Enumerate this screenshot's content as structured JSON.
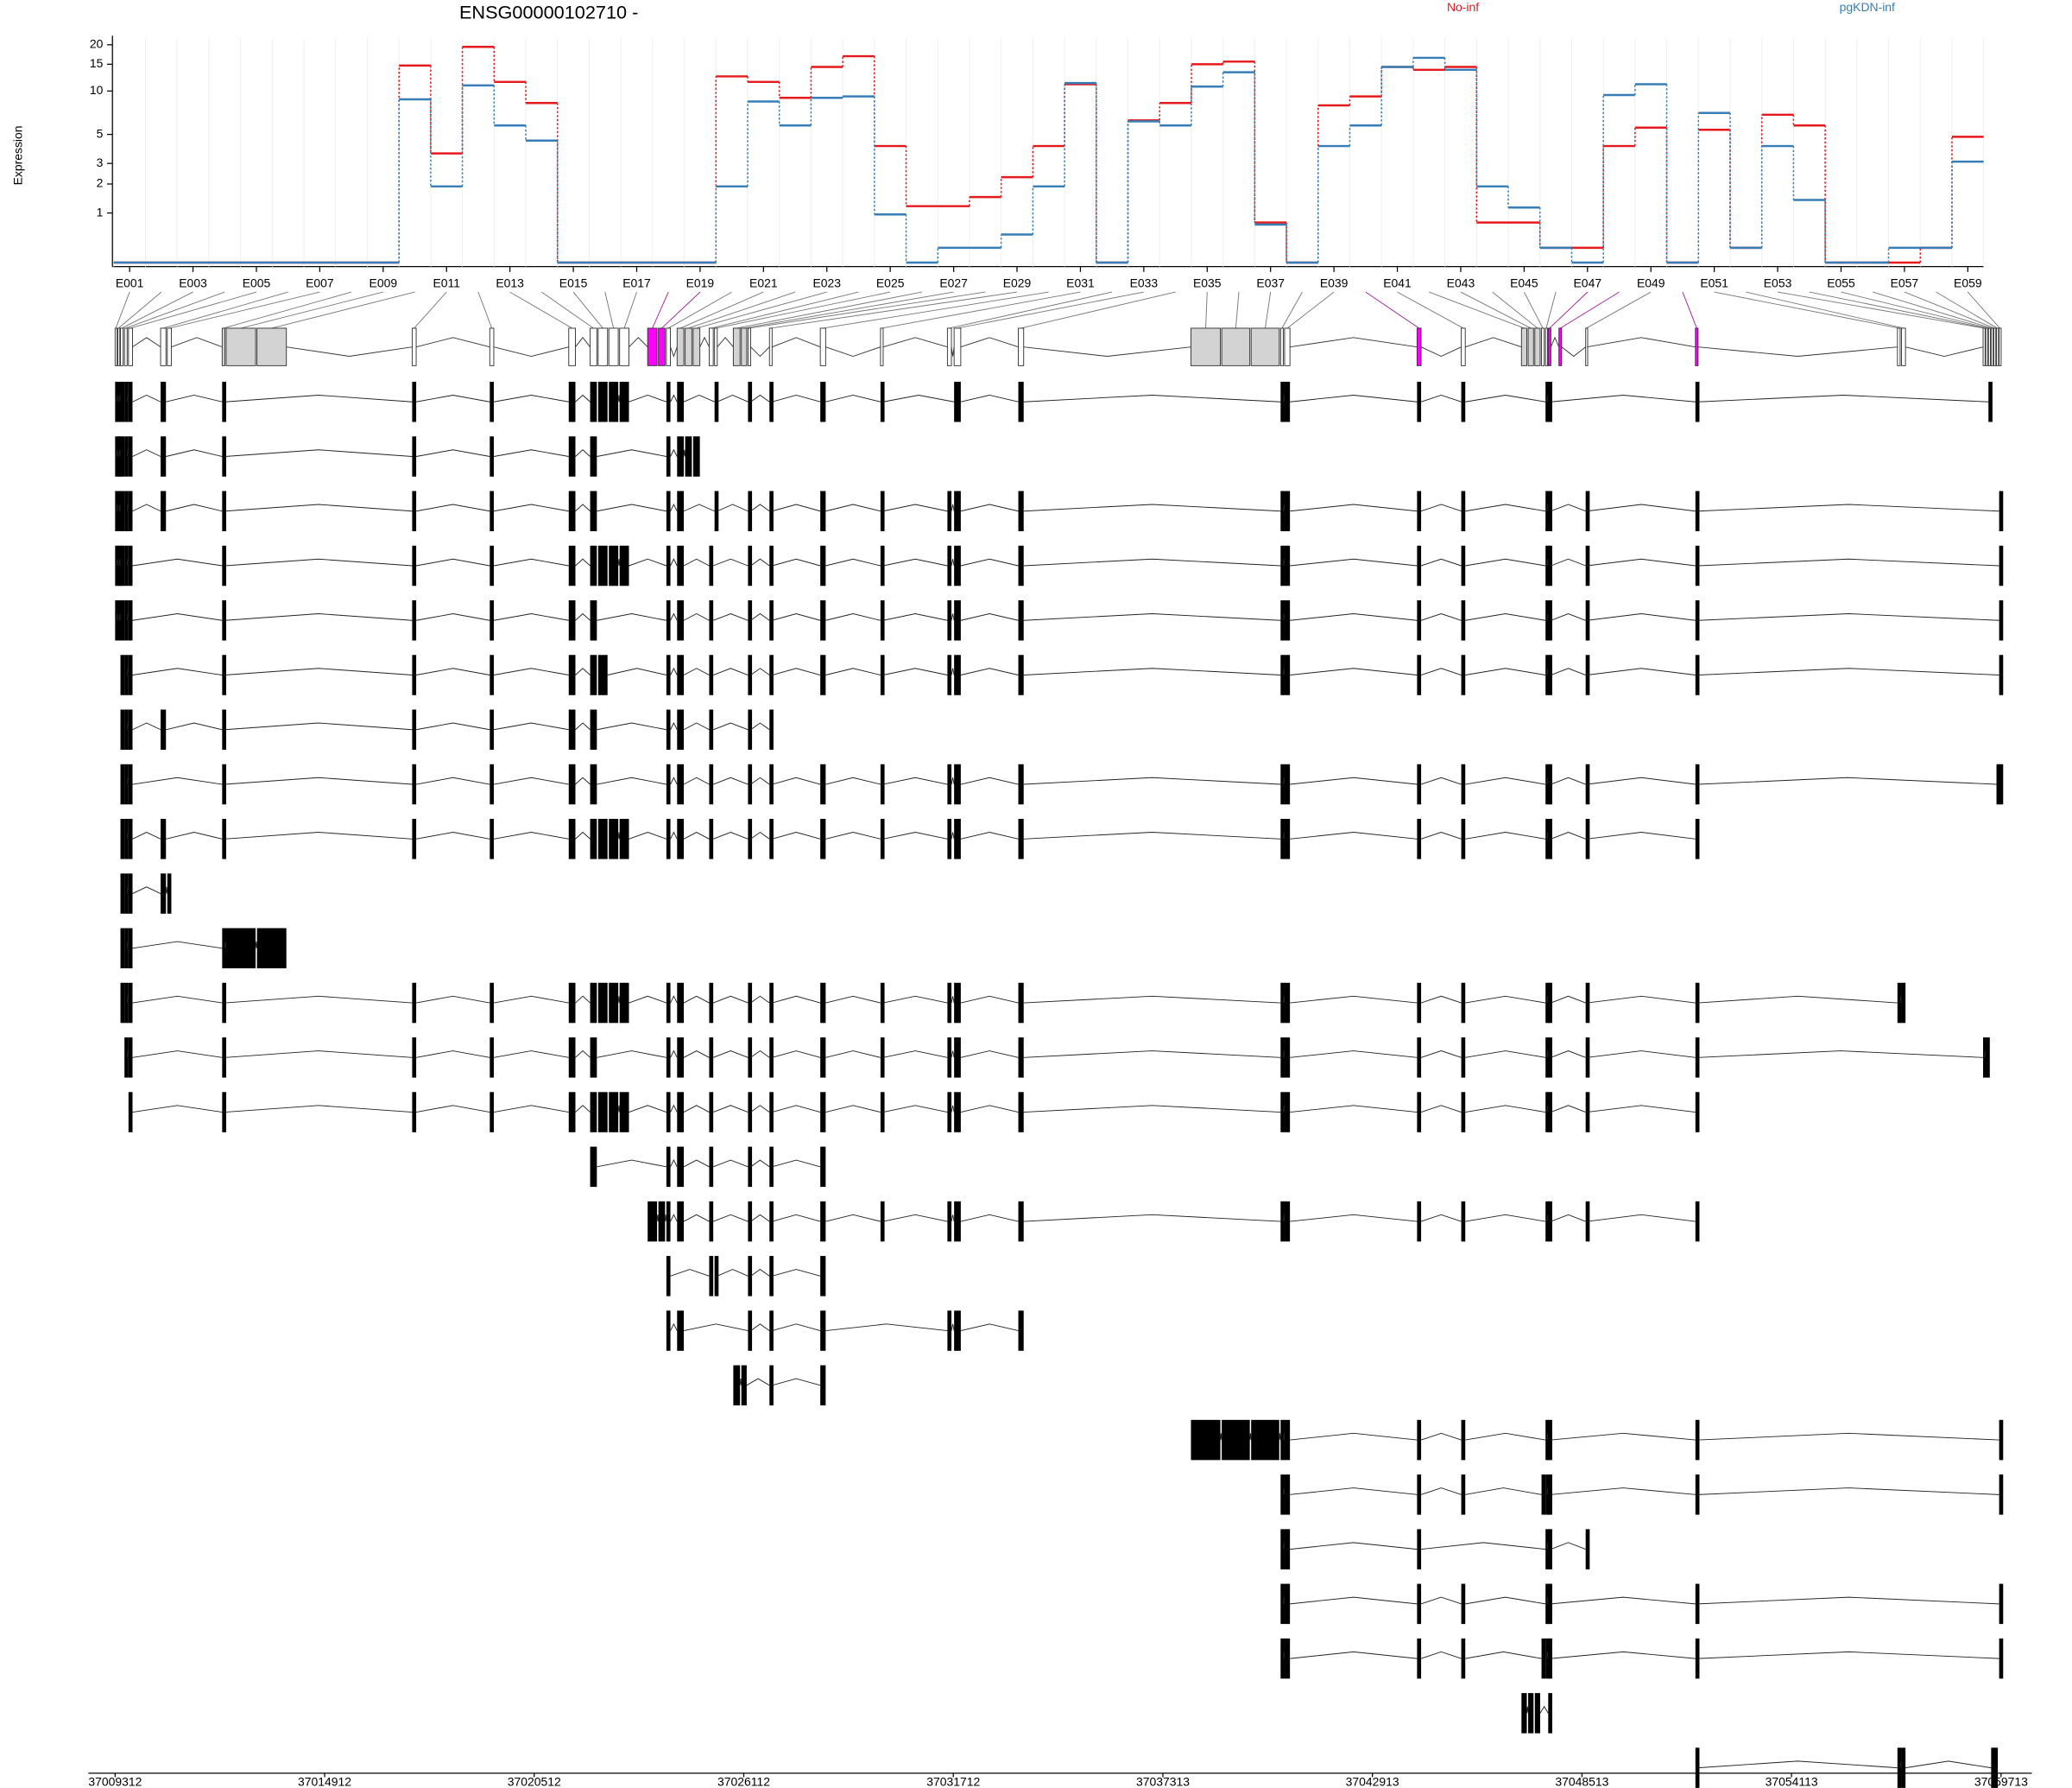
{
  "chart_data": {
    "type": "line",
    "title": "ENSG00000102710 -",
    "ylabel": "Expression",
    "yscale": "log1p",
    "categories": [
      "E001",
      null,
      "E003",
      null,
      "E005",
      null,
      "E007",
      null,
      "E009",
      null,
      "E011",
      null,
      "E013",
      null,
      "E015",
      null,
      "E017",
      null,
      "E019",
      null,
      "E021",
      null,
      "E023",
      null,
      "E025",
      null,
      "E027",
      null,
      "E029",
      null,
      "E031",
      null,
      "E033",
      null,
      "E035",
      null,
      "E037",
      null,
      "E039",
      null,
      "E041",
      null,
      "E043",
      null,
      "E045",
      null,
      "E047",
      null,
      "E049",
      null,
      "E051",
      null,
      "E053",
      null,
      "E055",
      null,
      "E057",
      null,
      "E059"
    ],
    "ylim": [
      0,
      22
    ],
    "yticks": [
      1,
      2,
      3,
      5,
      10,
      15,
      20
    ],
    "series": [
      {
        "name": "No-inf",
        "color": "#e41a1c",
        "values": [
          0,
          0,
          0,
          0,
          0,
          0,
          0,
          0,
          0,
          14.7,
          3.6,
          19.4,
          11.5,
          8.3,
          0,
          0,
          0,
          0,
          0,
          12.5,
          11.5,
          9,
          14.4,
          16.9,
          4.1,
          1.2,
          1.2,
          1.5,
          2.3,
          4.1,
          11.1,
          0,
          6.3,
          8.3,
          15,
          15.6,
          0.75,
          0,
          8,
          9.2,
          14.4,
          13.8,
          14.4,
          0.75,
          0.75,
          0.23,
          0.23,
          4.1,
          5.6,
          0,
          5.4,
          0.23,
          6.9,
          5.8,
          0,
          0,
          0,
          0.23,
          4.8
        ]
      },
      {
        "name": "pgKDN-inf",
        "color": "#377eb8",
        "values": [
          0,
          0,
          0,
          0,
          0,
          0,
          0,
          0,
          0,
          8.8,
          1.9,
          10.9,
          5.8,
          4.5,
          0,
          0,
          0,
          0,
          0,
          1.9,
          8.5,
          5.8,
          9,
          9.2,
          0.96,
          0,
          0.23,
          0.23,
          0.48,
          1.9,
          11.3,
          0,
          6.2,
          5.8,
          10.7,
          13.3,
          0.7,
          0,
          4.1,
          5.8,
          14.4,
          16.5,
          13.8,
          1.9,
          1.16,
          0.23,
          0,
          9.4,
          11.1,
          0,
          7.1,
          0.23,
          4.1,
          1.4,
          0,
          0,
          0.23,
          0.23,
          3.1
        ]
      }
    ]
  },
  "gene_model": {
    "xlim": [
      37009312,
      37059713
    ],
    "xticks": [
      37009312,
      37014912,
      37020512,
      37026112,
      37031712,
      37037313,
      37042913,
      37048513,
      37054113,
      37059713
    ],
    "highlight_color": "#ff00ff",
    "exons": [
      [
        37009312,
        37009348
      ],
      [
        37009384,
        37009419
      ],
      [
        37009455,
        37009527
      ],
      [
        37009562,
        37009634
      ],
      [
        37009670,
        37009777
      ],
      [
        37010528,
        37010671
      ],
      [
        37010707,
        37010814
      ],
      [
        37012173,
        37012244
      ],
      [
        37012280,
        37013067
      ],
      [
        37013103,
        37013889
      ],
      [
        37017251,
        37017358
      ],
      [
        37019325,
        37019432
      ],
      [
        37021435,
        37021613
      ],
      [
        37022007,
        37022186
      ],
      [
        37022221,
        37022472
      ],
      [
        37022507,
        37022758
      ],
      [
        37022794,
        37023044
      ],
      [
        37023544,
        37023795
      ],
      [
        37023831,
        37024009
      ],
      [
        37024045,
        37024152
      ],
      [
        37024331,
        37024510
      ],
      [
        37024546,
        37024725
      ],
      [
        37024760,
        37024939
      ],
      [
        37025189,
        37025297
      ],
      [
        37025332,
        37025404
      ],
      [
        37025833,
        37026012
      ],
      [
        37026048,
        37026191
      ],
      [
        37026226,
        37026298
      ],
      [
        37026799,
        37026870
      ],
      [
        37028158,
        37028301
      ],
      [
        37029767,
        37029838
      ],
      [
        37031555,
        37031662
      ],
      [
        37031734,
        37031912
      ],
      [
        37033450,
        37033593
      ],
      [
        37038063,
        37038850
      ],
      [
        37038886,
        37039636
      ],
      [
        37039672,
        37040423
      ],
      [
        37040459,
        37040530
      ],
      [
        37040566,
        37040709
      ],
      [
        37044106,
        37044214
      ],
      [
        37045287,
        37045394
      ],
      [
        37046896,
        37047039
      ],
      [
        37047075,
        37047218
      ],
      [
        37047253,
        37047396
      ],
      [
        37047432,
        37047504
      ],
      [
        37047539,
        37047575
      ],
      [
        37047611,
        37047682
      ],
      [
        37047897,
        37047969
      ],
      [
        37048612,
        37048648
      ],
      [
        37051545,
        37051616
      ],
      [
        37056944,
        37057016
      ],
      [
        37057052,
        37057159
      ],
      [
        37059233,
        37059269
      ],
      [
        37059305,
        37059341
      ],
      [
        37059376,
        37059412
      ],
      [
        37059448,
        37059484
      ],
      [
        37059519,
        37059555
      ],
      [
        37059591,
        37059627
      ],
      [
        37059662,
        37059698
      ]
    ],
    "exon_fills": [
      "#ffffff",
      "#ffffff",
      "#ffffff",
      "#ffffff",
      "#ffffff",
      "#ffffff",
      "#ffffff",
      "#d3d3d3",
      "#d3d3d3",
      "#d3d3d3",
      "#ffffff",
      "#ffffff",
      "#ffffff",
      "#ffffff",
      "#ffffff",
      "#ffffff",
      "#ffffff",
      "#ff00ff",
      "#ff00ff",
      "#ffffff",
      "#d3d3d3",
      "#d3d3d3",
      "#d3d3d3",
      "#ffffff",
      "#ffffff",
      "#d3d3d3",
      "#d3d3d3",
      "#ffffff",
      "#ffffff",
      "#ffffff",
      "#ffffff",
      "#ffffff",
      "#ffffff",
      "#ffffff",
      "#d3d3d3",
      "#d3d3d3",
      "#d3d3d3",
      "#ffffff",
      "#ffffff",
      "#ff00ff",
      "#ffffff",
      "#d3d3d3",
      "#d3d3d3",
      "#d3d3d3",
      "#ffffff",
      "#ffffff",
      "#ff00ff",
      "#ff00ff",
      "#ffffff",
      "#ff00ff",
      "#ffffff",
      "#ffffff",
      "#ffffff",
      "#ffffff",
      "#ffffff",
      "#ffffff",
      "#ffffff",
      "#ffffff",
      "#ffffff"
    ],
    "transcripts": [
      [
        0,
        1,
        2,
        3,
        4,
        5,
        7,
        10,
        11,
        12,
        13,
        14,
        15,
        16,
        19,
        20,
        24,
        27,
        28,
        29,
        30,
        32,
        33,
        37,
        38,
        39,
        40,
        45,
        46,
        49,
        54
      ],
      [
        0,
        1,
        2,
        3,
        4,
        5,
        7,
        10,
        11,
        12,
        13,
        19,
        20,
        21,
        22
      ],
      [
        0,
        1,
        2,
        3,
        4,
        5,
        7,
        10,
        11,
        12,
        13,
        19,
        20,
        24,
        27,
        28,
        29,
        30,
        31,
        32,
        33,
        37,
        38,
        39,
        40,
        45,
        46,
        48,
        49,
        58
      ],
      [
        0,
        1,
        2,
        3,
        4,
        7,
        10,
        11,
        12,
        13,
        14,
        15,
        16,
        19,
        20,
        23,
        27,
        28,
        29,
        30,
        31,
        32,
        33,
        37,
        38,
        39,
        40,
        45,
        46,
        48,
        49,
        58
      ],
      [
        0,
        1,
        2,
        3,
        4,
        7,
        10,
        11,
        12,
        13,
        19,
        20,
        23,
        27,
        28,
        29,
        30,
        31,
        32,
        33,
        37,
        38,
        39,
        40,
        45,
        46,
        48,
        49,
        58
      ],
      [
        2,
        3,
        4,
        7,
        10,
        11,
        12,
        13,
        14,
        19,
        20,
        23,
        27,
        28,
        29,
        30,
        31,
        32,
        33,
        37,
        38,
        39,
        40,
        45,
        46,
        48,
        49,
        58
      ],
      [
        2,
        3,
        4,
        5,
        7,
        10,
        11,
        12,
        13,
        19,
        20,
        23,
        27,
        28
      ],
      [
        2,
        3,
        4,
        7,
        10,
        11,
        12,
        13,
        19,
        20,
        23,
        27,
        28,
        29,
        30,
        31,
        32,
        33,
        37,
        38,
        39,
        40,
        45,
        46,
        48,
        49,
        57,
        58
      ],
      [
        2,
        3,
        4,
        5,
        7,
        10,
        11,
        12,
        13,
        14,
        15,
        16,
        19,
        20,
        23,
        27,
        28,
        29,
        30,
        31,
        32,
        33,
        37,
        38,
        39,
        40,
        45,
        46,
        48,
        49
      ],
      [
        2,
        3,
        4,
        5,
        6
      ],
      [
        2,
        3,
        4,
        7,
        8,
        9
      ],
      [
        2,
        3,
        4,
        7,
        10,
        11,
        12,
        13,
        14,
        15,
        16,
        19,
        20,
        23,
        27,
        28,
        29,
        30,
        31,
        32,
        33,
        37,
        38,
        39,
        40,
        45,
        46,
        48,
        49,
        50,
        51
      ],
      [
        3,
        4,
        7,
        10,
        11,
        12,
        13,
        19,
        20,
        23,
        27,
        28,
        29,
        30,
        31,
        32,
        33,
        37,
        38,
        39,
        40,
        45,
        46,
        48,
        49,
        52,
        53
      ],
      [
        4,
        7,
        10,
        11,
        12,
        13,
        14,
        15,
        16,
        19,
        20,
        23,
        27,
        28,
        29,
        30,
        31,
        32,
        33,
        37,
        38,
        39,
        40,
        45,
        46,
        48,
        49
      ],
      [
        13,
        19,
        20,
        23,
        27,
        28,
        29
      ],
      [
        17,
        18,
        19,
        20,
        23,
        27,
        28,
        29,
        30,
        31,
        32,
        33,
        37,
        38,
        39,
        40,
        45,
        46,
        48,
        49
      ],
      [
        19,
        23,
        24,
        27,
        28,
        29
      ],
      [
        19,
        20,
        27,
        28,
        29,
        31,
        32,
        33
      ],
      [
        25,
        26,
        28,
        29
      ],
      [
        34,
        35,
        36,
        37,
        38,
        39,
        40,
        45,
        46,
        49,
        58
      ],
      [
        37,
        38,
        39,
        40,
        44,
        45,
        46,
        49,
        58
      ],
      [
        37,
        38,
        39,
        45,
        46,
        48
      ],
      [
        37,
        38,
        39,
        40,
        45,
        46,
        49,
        58
      ],
      [
        37,
        38,
        39,
        40,
        44,
        45,
        46,
        49,
        58
      ],
      [
        41,
        42,
        43,
        46
      ],
      [
        49,
        50,
        51,
        55,
        56
      ]
    ]
  }
}
